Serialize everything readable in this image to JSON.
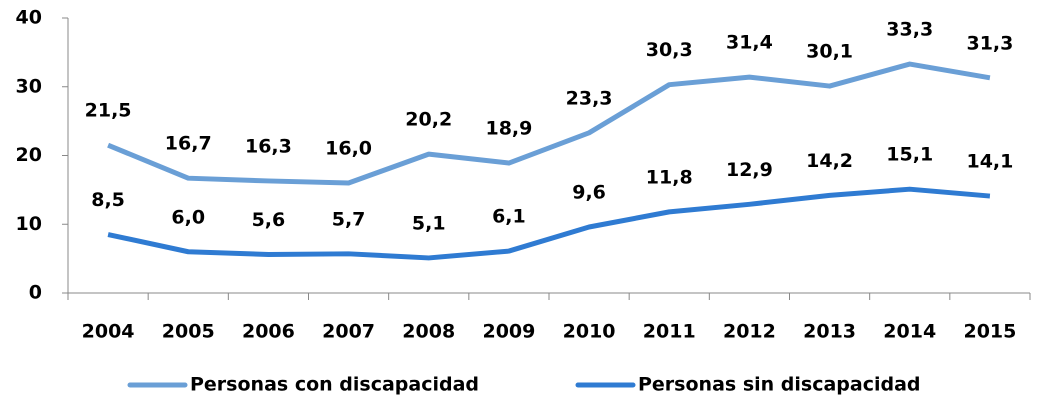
{
  "chart_data": {
    "type": "line",
    "categories": [
      "2004",
      "2005",
      "2006",
      "2007",
      "2008",
      "2009",
      "2010",
      "2011",
      "2012",
      "2013",
      "2014",
      "2015"
    ],
    "series": [
      {
        "name": "Personas con discapacidad",
        "color": "#6a9fd6",
        "values": [
          21.5,
          16.7,
          16.3,
          16.0,
          20.2,
          18.9,
          23.3,
          30.3,
          31.4,
          30.1,
          33.3,
          31.3
        ],
        "value_labels": [
          "21,5",
          "16,7",
          "16,3",
          "16,0",
          "20,2",
          "18,9",
          "23,3",
          "30,3",
          "31,4",
          "30,1",
          "33,3",
          "31,3"
        ]
      },
      {
        "name": "Personas sin discapacidad",
        "color": "#2f7bd2",
        "values": [
          8.5,
          6.0,
          5.6,
          5.7,
          5.1,
          6.1,
          9.6,
          11.8,
          12.9,
          14.2,
          15.1,
          14.1
        ],
        "value_labels": [
          "8,5",
          "6,0",
          "5,6",
          "5,7",
          "5,1",
          "6,1",
          "9,6",
          "11,8",
          "12,9",
          "14,2",
          "15,1",
          "14,1"
        ]
      }
    ],
    "ylim": [
      0,
      40
    ],
    "yticks": [
      0,
      10,
      20,
      30,
      40
    ],
    "grid": false,
    "legend": "bottom"
  }
}
